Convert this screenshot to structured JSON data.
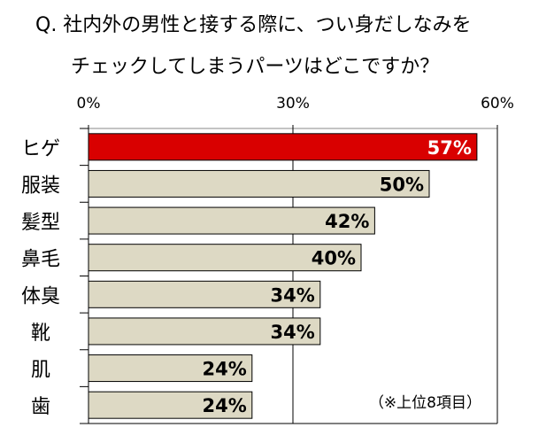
{
  "chart_data": {
    "type": "bar",
    "orientation": "horizontal",
    "title_line1": "Q. 社内外の男性と接する際に、つい身だしなみを",
    "title_line2": "チェックしてしまうパーツはどこですか？",
    "categories": [
      "ヒゲ",
      "服装",
      "髪型",
      "鼻毛",
      "体臭",
      "靴",
      "肌",
      "歯"
    ],
    "values": [
      57,
      50,
      42,
      40,
      34,
      34,
      24,
      24
    ],
    "value_labels": [
      "57%",
      "50%",
      "42%",
      "40%",
      "34%",
      "34%",
      "24%",
      "24%"
    ],
    "xlim": [
      0,
      60
    ],
    "xticks": [
      0,
      30,
      60
    ],
    "xtick_labels": [
      "0%",
      "30%",
      "60%"
    ],
    "grid": true,
    "note": "（※上位8項目）",
    "colors": {
      "highlight": "#d90000",
      "bar": "#ddd9c4",
      "highlight_label": "#ffffff",
      "label": "#000000"
    }
  }
}
